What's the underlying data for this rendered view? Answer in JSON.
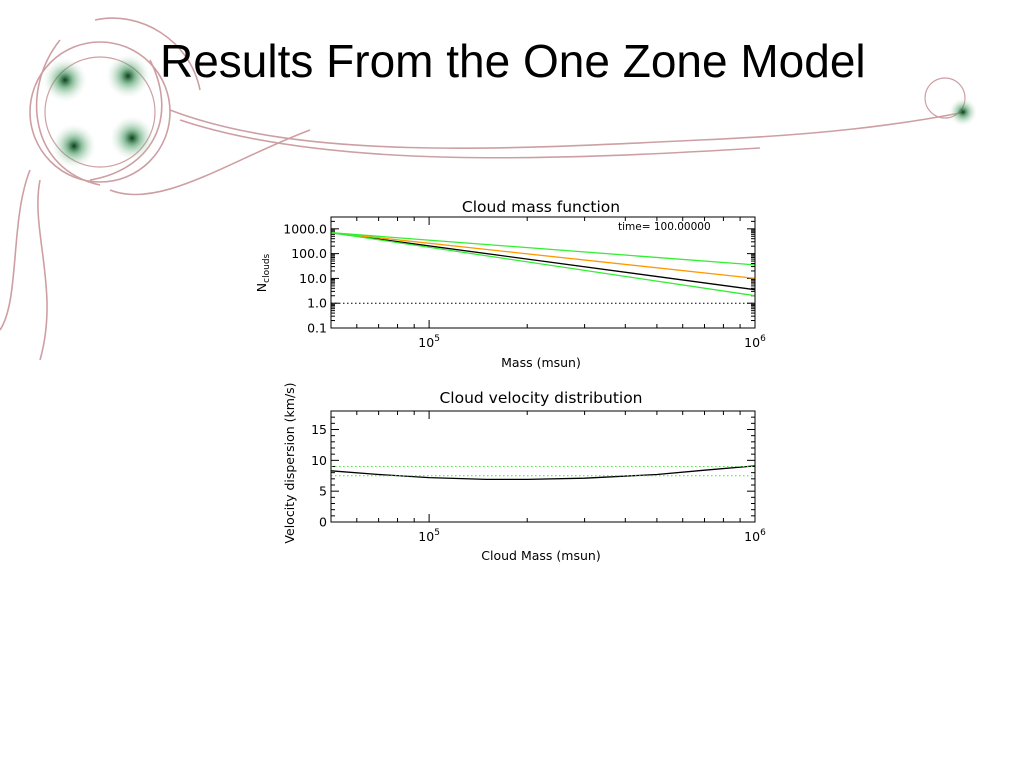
{
  "slide": {
    "title": "Results From the One Zone Model"
  },
  "chart_data": [
    {
      "type": "line",
      "title": "Cloud mass function",
      "xlabel": "Mass (msun)",
      "ylabel": "N",
      "ylabel_subscript": "clouds",
      "annotation": "time=   100.00000",
      "xscale": "log",
      "yscale": "log",
      "xlim": [
        50000,
        1000000
      ],
      "ylim": [
        0.1,
        3000
      ],
      "x_ticks": [
        {
          "value": 100000,
          "base": "10",
          "exp": "5"
        },
        {
          "value": 1000000,
          "base": "10",
          "exp": "6"
        }
      ],
      "y_ticks": [
        {
          "value": 1000,
          "label": "1000.0"
        },
        {
          "value": 100,
          "label": "100.0"
        },
        {
          "value": 10,
          "label": "10.0"
        },
        {
          "value": 1,
          "label": "1.0"
        },
        {
          "value": 0.1,
          "label": "0.1"
        }
      ],
      "series": [
        {
          "color": "#000000",
          "style": "solid",
          "x": [
            50000,
            1000000
          ],
          "y": [
            700,
            3.5
          ]
        },
        {
          "color": "#ff9900",
          "style": "solid",
          "x": [
            50000,
            1000000
          ],
          "y": [
            700,
            10
          ]
        },
        {
          "color": "#33ee33",
          "style": "solid",
          "x": [
            50000,
            1000000
          ],
          "y": [
            700,
            35
          ]
        },
        {
          "color": "#33ee33",
          "style": "solid",
          "x": [
            50000,
            1000000
          ],
          "y": [
            700,
            2
          ]
        },
        {
          "color": "#000000",
          "style": "dotted",
          "x": [
            50000,
            1000000
          ],
          "y": [
            1,
            1
          ]
        }
      ],
      "grid": false
    },
    {
      "type": "line",
      "title": "Cloud velocity distribution",
      "xlabel": "Cloud Mass (msun)",
      "ylabel": "Velocity dispersion (km/s)",
      "xscale": "log",
      "yscale": "linear",
      "xlim": [
        50000,
        1000000
      ],
      "ylim": [
        0,
        18
      ],
      "x_ticks": [
        {
          "value": 100000,
          "base": "10",
          "exp": "5"
        },
        {
          "value": 1000000,
          "base": "10",
          "exp": "6"
        }
      ],
      "y_ticks": [
        {
          "value": 15,
          "label": "15"
        },
        {
          "value": 10,
          "label": "10"
        },
        {
          "value": 5,
          "label": "5"
        },
        {
          "value": 0,
          "label": "0"
        }
      ],
      "series": [
        {
          "color": "#000000",
          "style": "solid",
          "x": [
            50000,
            70000,
            100000,
            150000,
            200000,
            300000,
            500000,
            700000,
            1000000
          ],
          "y": [
            8.3,
            7.7,
            7.2,
            6.9,
            6.9,
            7.1,
            7.7,
            8.4,
            9.1
          ]
        },
        {
          "color": "#33ee33",
          "style": "dotted",
          "x": [
            50000,
            1000000
          ],
          "y": [
            9.0,
            9.0
          ]
        },
        {
          "color": "#33ee33",
          "style": "dotted",
          "x": [
            50000,
            1000000
          ],
          "y": [
            7.5,
            7.5
          ]
        }
      ],
      "grid": false
    }
  ]
}
